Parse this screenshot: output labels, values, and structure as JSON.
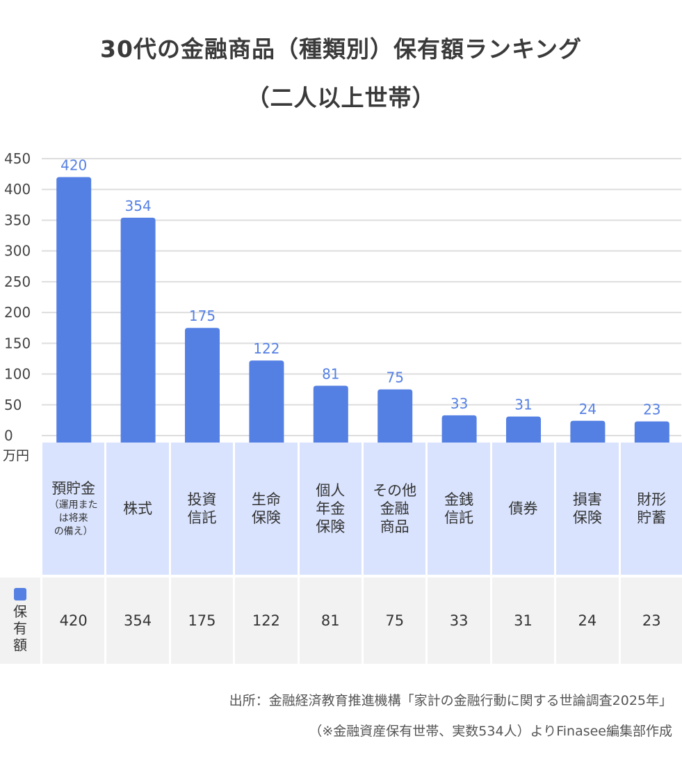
{
  "title_line1": "30代の金融商品（種類別）保有額ランキング",
  "title_line2": "（二人以上世帯）",
  "unit_label": "万円",
  "source_line1": "出所：金融経済教育推進機構「家計の金融行動に関する世論調査2025年」",
  "source_line2": "（※金融資産保有世帯、実数534人）よりFinasee編集部作成",
  "colors": {
    "bar": "#5580e3",
    "label": "#5580e3",
    "category_bg": "#d9e3fd",
    "value_bg": "#f2f2f2",
    "grid": "#dddddd"
  },
  "chart_data": {
    "type": "bar",
    "categories": [
      {
        "label": "預貯金",
        "note": "（運用また\nは将来\nの備え）"
      },
      {
        "label": "株式",
        "note": ""
      },
      {
        "label": "投資\n信託",
        "note": ""
      },
      {
        "label": "生命\n保険",
        "note": ""
      },
      {
        "label": "個人\n年金\n保険",
        "note": ""
      },
      {
        "label": "その他\n金融\n商品",
        "note": ""
      },
      {
        "label": "金銭\n信託",
        "note": ""
      },
      {
        "label": "債券",
        "note": ""
      },
      {
        "label": "損害\n保険",
        "note": ""
      },
      {
        "label": "財形\n貯蓄",
        "note": ""
      }
    ],
    "series": [
      {
        "name": "保有額",
        "values": [
          420,
          354,
          175,
          122,
          81,
          75,
          33,
          31,
          24,
          23
        ]
      }
    ],
    "ylim": [
      0,
      450
    ],
    "yticks": [
      0,
      50,
      100,
      150,
      200,
      250,
      300,
      350,
      400,
      450
    ],
    "grid": true
  }
}
